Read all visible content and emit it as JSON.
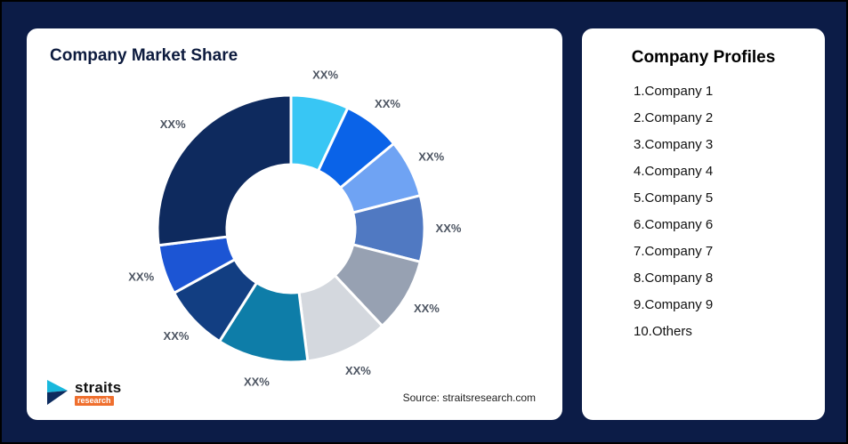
{
  "page": {
    "background": "#0c1c47",
    "card_color": "#ffffff"
  },
  "market_share_card": {
    "title": "Company Market Share",
    "source": "Source: straitsresearch.com",
    "logo": {
      "brand": "straits",
      "sub": "research",
      "icon": "straits-play-arrow-icon",
      "icon_colors": {
        "primary": "#19b8dd",
        "secondary": "#0d2b5e"
      }
    }
  },
  "profiles_card": {
    "title": "Company Profiles",
    "items": [
      "1.Company 1",
      "2.Company 2",
      "3.Company 3",
      "4.Company 4",
      "5.Company 5",
      "6.Company 6",
      "7.Company 7",
      "8.Company 8",
      "9.Company 9",
      "10.Others"
    ]
  },
  "chart_data": {
    "type": "pie",
    "title": "Company Market Share",
    "donut": true,
    "inner_radius_ratio": 0.48,
    "start_angle_deg": 0,
    "direction": "clockwise",
    "legend_position": "none",
    "separator_color": "#ffffff",
    "label_color": "#4d5562",
    "segments": [
      {
        "label": "XX%",
        "value": 7,
        "color": "#38c6f4"
      },
      {
        "label": "XX%",
        "value": 7,
        "color": "#0a63e8"
      },
      {
        "label": "XX%",
        "value": 7,
        "color": "#6fa3f3"
      },
      {
        "label": "XX%",
        "value": 8,
        "color": "#5079c2"
      },
      {
        "label": "XX%",
        "value": 9,
        "color": "#97a1b2"
      },
      {
        "label": "XX%",
        "value": 10,
        "color": "#d4d8de"
      },
      {
        "label": "XX%",
        "value": 11,
        "color": "#0e7da8"
      },
      {
        "label": "XX%",
        "value": 8,
        "color": "#123e82"
      },
      {
        "label": "XX%",
        "value": 6,
        "color": "#1c55d4"
      },
      {
        "label": "XX%",
        "value": 27,
        "color": "#0e2a5e"
      }
    ]
  }
}
